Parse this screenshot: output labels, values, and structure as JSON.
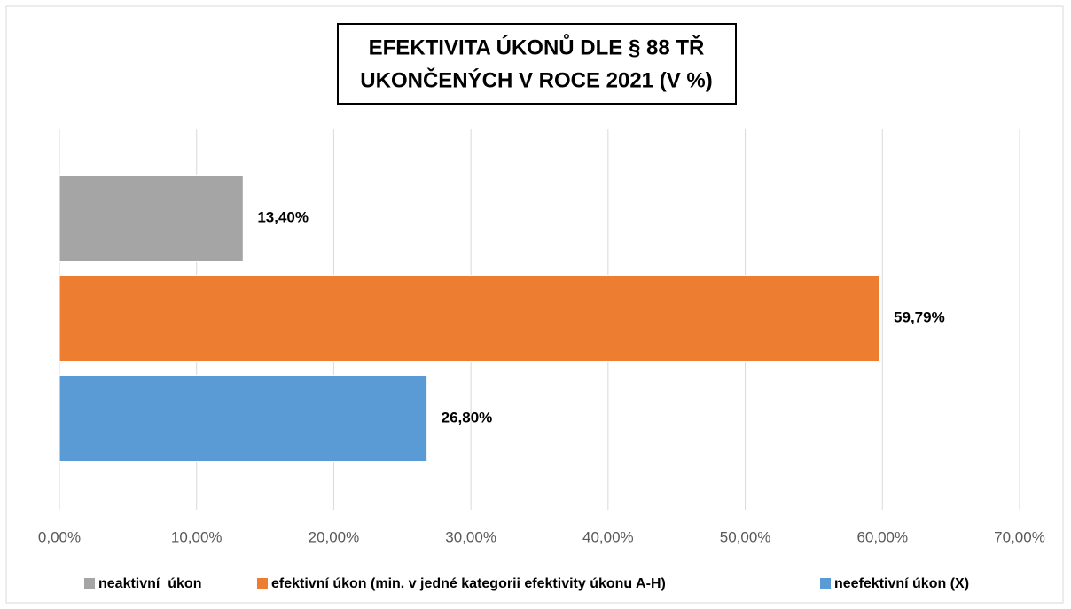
{
  "chart_data": {
    "type": "bar",
    "orientation": "horizontal",
    "title": [
      "EFEKTIVITA ÚKONŮ DLE § 88 TŘ",
      "UKONČENÝCH V ROCE 2021 (V %)"
    ],
    "series": [
      {
        "name": "neaktivní  úkon",
        "color": "#a5a5a5",
        "values": [
          13.4
        ],
        "value_labels": [
          "13,40%"
        ]
      },
      {
        "name": "efektivní úkon (min. v jedné kategorii efektivity úkonu A-H)",
        "color": "#ed7d31",
        "values": [
          59.79
        ],
        "value_labels": [
          "59,79%"
        ]
      },
      {
        "name": "neefektivní úkon (X)",
        "color": "#5b9bd5",
        "values": [
          26.8
        ],
        "value_labels": [
          "26,80%"
        ]
      }
    ],
    "xlim": [
      0,
      70
    ],
    "xticks": [
      {
        "value": 0,
        "label": "0,00%"
      },
      {
        "value": 10,
        "label": "10,00%"
      },
      {
        "value": 20,
        "label": "20,00%"
      },
      {
        "value": 30,
        "label": "30,00%"
      },
      {
        "value": 40,
        "label": "40,00%"
      },
      {
        "value": 50,
        "label": "50,00%"
      },
      {
        "value": 60,
        "label": "60,00%"
      },
      {
        "value": 70,
        "label": "70,00%"
      }
    ],
    "grid": true,
    "legend": "bottom"
  }
}
